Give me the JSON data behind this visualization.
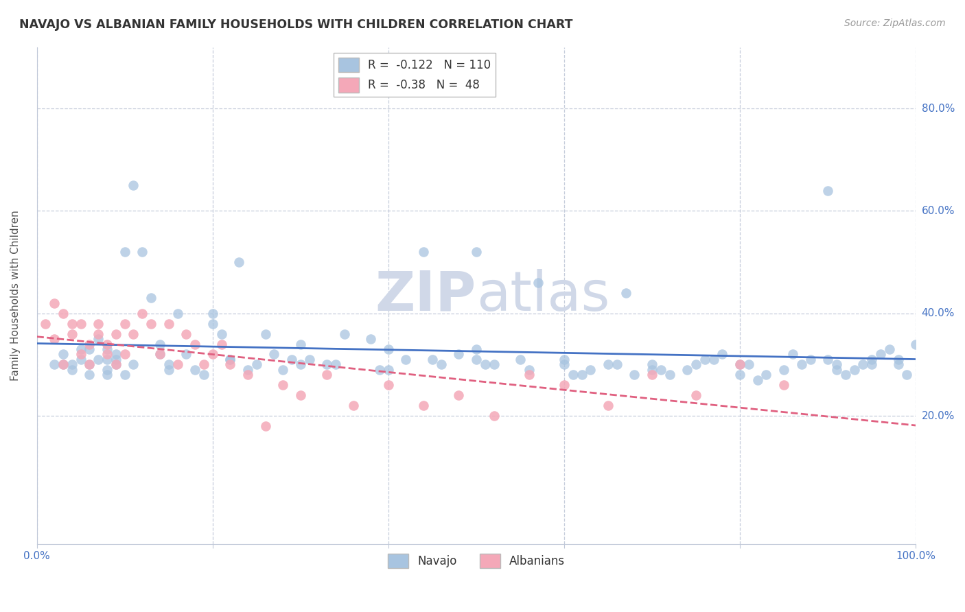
{
  "title": "NAVAJO VS ALBANIAN FAMILY HOUSEHOLDS WITH CHILDREN CORRELATION CHART",
  "source": "Source: ZipAtlas.com",
  "ylabel": "Family Households with Children",
  "xlim": [
    0.0,
    1.0
  ],
  "ylim": [
    -0.05,
    0.92
  ],
  "yticks": [
    0.2,
    0.4,
    0.6,
    0.8
  ],
  "xticks": [
    0.0,
    0.2,
    0.4,
    0.6,
    0.8,
    1.0
  ],
  "ytick_labels": [
    "20.0%",
    "40.0%",
    "60.0%",
    "80.0%"
  ],
  "navajo_R": -0.122,
  "navajo_N": 110,
  "albanian_R": -0.38,
  "albanian_N": 48,
  "navajo_color": "#a8c4e0",
  "albanian_color": "#f4a8b8",
  "navajo_line_color": "#4472c4",
  "albanian_line_color": "#e06080",
  "watermark_zip": "ZIP",
  "watermark_atlas": "atlas",
  "watermark_color": "#d0d8e8",
  "background_color": "#ffffff",
  "navajo_x": [
    0.02,
    0.03,
    0.04,
    0.05,
    0.05,
    0.06,
    0.06,
    0.07,
    0.07,
    0.08,
    0.08,
    0.08,
    0.09,
    0.09,
    0.1,
    0.11,
    0.12,
    0.13,
    0.14,
    0.15,
    0.16,
    0.17,
    0.18,
    0.2,
    0.21,
    0.22,
    0.23,
    0.25,
    0.26,
    0.27,
    0.28,
    0.3,
    0.31,
    0.33,
    0.35,
    0.38,
    0.4,
    0.42,
    0.44,
    0.46,
    0.48,
    0.5,
    0.52,
    0.55,
    0.57,
    0.6,
    0.62,
    0.63,
    0.65,
    0.67,
    0.68,
    0.7,
    0.72,
    0.74,
    0.75,
    0.77,
    0.78,
    0.8,
    0.82,
    0.83,
    0.85,
    0.87,
    0.88,
    0.9,
    0.91,
    0.92,
    0.93,
    0.94,
    0.95,
    0.96,
    0.97,
    0.98,
    0.99,
    1.0,
    0.04,
    0.06,
    0.09,
    0.11,
    0.14,
    0.19,
    0.24,
    0.29,
    0.34,
    0.39,
    0.45,
    0.51,
    0.56,
    0.61,
    0.66,
    0.71,
    0.76,
    0.81,
    0.86,
    0.91,
    0.95,
    0.98,
    0.03,
    0.08,
    0.15,
    0.22,
    0.3,
    0.4,
    0.5,
    0.6,
    0.7,
    0.8,
    0.9,
    0.1,
    0.2,
    0.5
  ],
  "navajo_y": [
    0.3,
    0.32,
    0.29,
    0.31,
    0.33,
    0.3,
    0.28,
    0.31,
    0.35,
    0.29,
    0.33,
    0.31,
    0.3,
    0.32,
    0.28,
    0.65,
    0.52,
    0.43,
    0.34,
    0.3,
    0.4,
    0.32,
    0.29,
    0.38,
    0.36,
    0.31,
    0.5,
    0.3,
    0.36,
    0.32,
    0.29,
    0.34,
    0.31,
    0.3,
    0.36,
    0.35,
    0.33,
    0.31,
    0.52,
    0.3,
    0.32,
    0.33,
    0.3,
    0.31,
    0.46,
    0.31,
    0.28,
    0.29,
    0.3,
    0.44,
    0.28,
    0.3,
    0.28,
    0.29,
    0.3,
    0.31,
    0.32,
    0.3,
    0.27,
    0.28,
    0.29,
    0.3,
    0.31,
    0.64,
    0.3,
    0.28,
    0.29,
    0.3,
    0.31,
    0.32,
    0.33,
    0.3,
    0.28,
    0.34,
    0.3,
    0.33,
    0.31,
    0.3,
    0.32,
    0.28,
    0.29,
    0.31,
    0.3,
    0.29,
    0.31,
    0.3,
    0.29,
    0.28,
    0.3,
    0.29,
    0.31,
    0.3,
    0.32,
    0.29,
    0.3,
    0.31,
    0.3,
    0.28,
    0.29,
    0.31,
    0.3,
    0.29,
    0.31,
    0.3,
    0.29,
    0.28,
    0.31,
    0.52,
    0.4,
    0.52
  ],
  "albanian_x": [
    0.01,
    0.02,
    0.02,
    0.03,
    0.03,
    0.04,
    0.04,
    0.05,
    0.05,
    0.06,
    0.06,
    0.07,
    0.07,
    0.08,
    0.08,
    0.09,
    0.09,
    0.1,
    0.1,
    0.11,
    0.12,
    0.13,
    0.14,
    0.15,
    0.16,
    0.17,
    0.18,
    0.19,
    0.2,
    0.21,
    0.22,
    0.24,
    0.26,
    0.28,
    0.3,
    0.33,
    0.36,
    0.4,
    0.44,
    0.48,
    0.52,
    0.56,
    0.6,
    0.65,
    0.7,
    0.75,
    0.8,
    0.85
  ],
  "albanian_y": [
    0.38,
    0.42,
    0.35,
    0.4,
    0.3,
    0.36,
    0.38,
    0.32,
    0.38,
    0.34,
    0.3,
    0.36,
    0.38,
    0.32,
    0.34,
    0.36,
    0.3,
    0.32,
    0.38,
    0.36,
    0.4,
    0.38,
    0.32,
    0.38,
    0.3,
    0.36,
    0.34,
    0.3,
    0.32,
    0.34,
    0.3,
    0.28,
    0.18,
    0.26,
    0.24,
    0.28,
    0.22,
    0.26,
    0.22,
    0.24,
    0.2,
    0.28,
    0.26,
    0.22,
    0.28,
    0.24,
    0.3,
    0.26
  ]
}
